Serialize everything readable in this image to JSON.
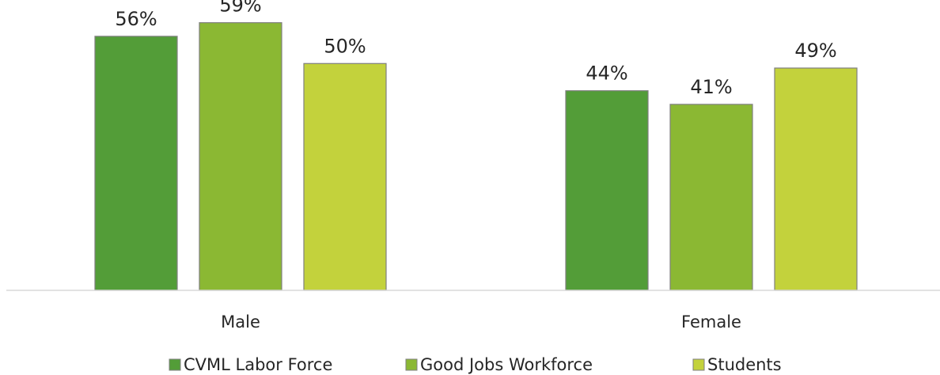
{
  "chart_data": {
    "type": "bar",
    "categories": [
      "Male",
      "Female"
    ],
    "series": [
      {
        "name": "CVML Labor Force",
        "values": [
          56,
          44
        ],
        "color": "#539d38"
      },
      {
        "name": "Good Jobs Workforce",
        "values": [
          59,
          41
        ],
        "color": "#8bb833"
      },
      {
        "name": "Students",
        "values": [
          50,
          49
        ],
        "color": "#c3d23c"
      }
    ],
    "value_suffix": "%",
    "ylim": [
      0,
      64
    ],
    "grid": false,
    "legend_position": "bottom",
    "title": "",
    "xlabel": "",
    "ylabel": ""
  }
}
